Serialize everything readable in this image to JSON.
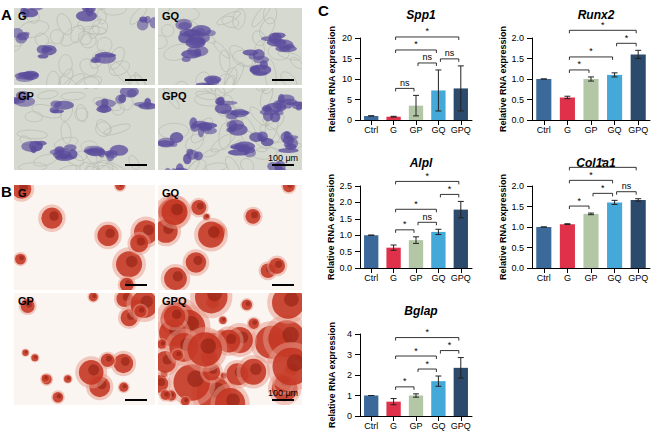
{
  "figure": {
    "panels": [
      {
        "label": "A",
        "images": [
          "G",
          "GQ",
          "GP",
          "GPQ"
        ],
        "scale_bar": "100 μm"
      },
      {
        "label": "B",
        "images": [
          "G",
          "GQ",
          "GP",
          "GPQ"
        ],
        "scale_bar": "100 μm"
      },
      {
        "label": "C"
      }
    ]
  },
  "chart_data": [
    {
      "type": "bar",
      "title": "Spp1",
      "ylabel": "Relative RNA expression",
      "categories": [
        "Ctrl",
        "G",
        "GP",
        "GQ",
        "GPQ"
      ],
      "values": [
        1,
        0.8,
        3.5,
        7.2,
        7.7
      ],
      "errors": [
        0,
        0.1,
        2.5,
        5,
        5.5
      ],
      "colors": [
        "#3b6a9a",
        "#e0314b",
        "#b3c6a6",
        "#44a8d8",
        "#2c4a6b"
      ],
      "ylim": [
        0,
        20
      ],
      "yticks": [
        0,
        5,
        10,
        15,
        20
      ],
      "grid": false,
      "significance": [
        {
          "from": "G",
          "to": "GP",
          "label": "ns"
        },
        {
          "from": "GP",
          "to": "GQ",
          "label": "ns"
        },
        {
          "from": "GQ",
          "to": "GPQ",
          "label": "ns"
        },
        {
          "from": "G",
          "to": "GQ",
          "label": "*"
        },
        {
          "from": "G",
          "to": "GPQ",
          "label": "*"
        }
      ]
    },
    {
      "type": "bar",
      "title": "Runx2",
      "ylabel": "Relative RNA expression",
      "categories": [
        "Ctrl",
        "G",
        "GP",
        "GQ",
        "GPQ"
      ],
      "values": [
        1,
        0.55,
        1,
        1.1,
        1.6
      ],
      "errors": [
        0,
        0.03,
        0.05,
        0.05,
        0.1
      ],
      "colors": [
        "#3b6a9a",
        "#e0314b",
        "#b3c6a6",
        "#44a8d8",
        "#2c4a6b"
      ],
      "ylim": [
        0,
        2
      ],
      "yticks": [
        {
          "value": 0,
          "label": "0.0"
        },
        0.5,
        {
          "value": 1,
          "label": "1.0"
        },
        1.5,
        {
          "value": 2,
          "label": "2.0"
        }
      ],
      "grid": false,
      "significance": [
        {
          "from": "G",
          "to": "GP",
          "label": "*"
        },
        {
          "from": "GQ",
          "to": "GPQ",
          "label": "*"
        },
        {
          "from": "G",
          "to": "GQ",
          "label": "*"
        },
        {
          "from": "G",
          "to": "GPQ",
          "label": "*"
        }
      ]
    },
    {
      "type": "bar",
      "title": "Alpl",
      "ylabel": "Relative RNA expression",
      "categories": [
        "Ctrl",
        "G",
        "GP",
        "GQ",
        "GPQ"
      ],
      "values": [
        1,
        0.62,
        0.85,
        1.1,
        1.78
      ],
      "errors": [
        0,
        0.08,
        0.1,
        0.08,
        0.25
      ],
      "colors": [
        "#3b6a9a",
        "#e0314b",
        "#b3c6a6",
        "#44a8d8",
        "#2c4a6b"
      ],
      "ylim": [
        0,
        2.5
      ],
      "yticks": [
        {
          "value": 0,
          "label": "0.0"
        },
        0.5,
        {
          "value": 1,
          "label": "1.0"
        },
        1.5,
        {
          "value": 2,
          "label": "2.0"
        },
        2.5
      ],
      "grid": false,
      "significance": [
        {
          "from": "G",
          "to": "GP",
          "label": "*"
        },
        {
          "from": "GP",
          "to": "GQ",
          "label": "ns"
        },
        {
          "from": "GQ",
          "to": "GPQ",
          "label": "*"
        },
        {
          "from": "G",
          "to": "GQ",
          "label": "*"
        },
        {
          "from": "G",
          "to": "GPQ",
          "label": "*"
        }
      ]
    },
    {
      "type": "bar",
      "title": "Col1a1",
      "ylabel": "Relative RNA expression",
      "categories": [
        "Ctrl",
        "G",
        "GP",
        "GQ",
        "GPQ"
      ],
      "values": [
        1,
        1.07,
        1.32,
        1.6,
        1.66
      ],
      "errors": [
        0,
        0.01,
        0.02,
        0.05,
        0.03
      ],
      "colors": [
        "#3b6a9a",
        "#e0314b",
        "#b3c6a6",
        "#44a8d8",
        "#2c4a6b"
      ],
      "ylim": [
        0,
        2
      ],
      "yticks": [
        {
          "value": 0,
          "label": "0.0"
        },
        0.5,
        {
          "value": 1,
          "label": "1.0"
        },
        1.5,
        {
          "value": 2,
          "label": "2.0"
        }
      ],
      "grid": false,
      "significance": [
        {
          "from": "G",
          "to": "GP",
          "label": "*"
        },
        {
          "from": "GP",
          "to": "GQ",
          "label": "*"
        },
        {
          "from": "GQ",
          "to": "GPQ",
          "label": "ns"
        },
        {
          "from": "G",
          "to": "GQ",
          "label": "*"
        },
        {
          "from": "G",
          "to": "GPQ",
          "label": "*"
        }
      ]
    },
    {
      "type": "bar",
      "title": "Bglap",
      "ylabel": "Relative RNA expression",
      "categories": [
        "Ctrl",
        "G",
        "GP",
        "GQ",
        "GPQ"
      ],
      "values": [
        1,
        0.7,
        1,
        1.7,
        2.35
      ],
      "errors": [
        0,
        0.15,
        0.08,
        0.25,
        0.5
      ],
      "colors": [
        "#3b6a9a",
        "#e0314b",
        "#b3c6a6",
        "#44a8d8",
        "#2c4a6b"
      ],
      "ylim": [
        0,
        4
      ],
      "yticks": [
        0,
        1,
        2,
        3,
        4
      ],
      "grid": false,
      "significance": [
        {
          "from": "G",
          "to": "GP",
          "label": "*"
        },
        {
          "from": "GP",
          "to": "GQ",
          "label": "*"
        },
        {
          "from": "GQ",
          "to": "GPQ",
          "label": "*"
        },
        {
          "from": "G",
          "to": "GQ",
          "label": "*"
        },
        {
          "from": "G",
          "to": "GPQ",
          "label": "*"
        }
      ]
    }
  ]
}
